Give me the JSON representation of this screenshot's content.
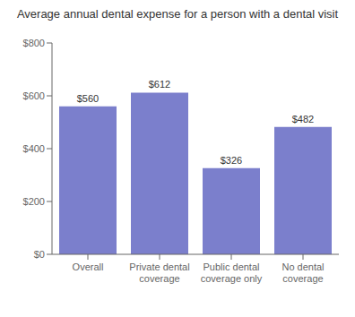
{
  "chart_data": {
    "type": "bar",
    "title": "Average annual dental expense for a person with a dental visit",
    "categories": [
      "Overall",
      "Private dental\ncoverage",
      "Public dental\ncoverage only",
      "No dental\ncoverage"
    ],
    "values": [
      560,
      612,
      326,
      482
    ],
    "value_labels": [
      "$560",
      "$612",
      "$326",
      "$482"
    ],
    "data_labels": true,
    "color": "#7b7fcc",
    "ylim": [
      0,
      800
    ],
    "yticks": [
      {
        "value": 0,
        "label": "$0"
      },
      {
        "value": 200,
        "label": "$200"
      },
      {
        "value": 400,
        "label": "$400"
      },
      {
        "value": 600,
        "label": "$600"
      },
      {
        "value": 800,
        "label": "$800"
      }
    ],
    "grid": false
  }
}
